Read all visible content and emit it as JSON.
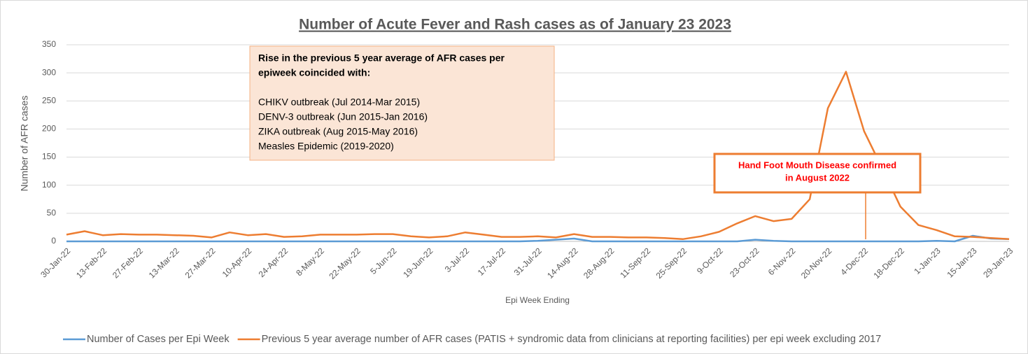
{
  "chart_data": {
    "type": "line",
    "title": "Number of Acute Fever and Rash cases as of January 23 2023",
    "x_label": "Epi Week Ending",
    "y_label": "Number of AFR cases",
    "categories": [
      "30-Jan-22",
      null,
      "13-Feb-22",
      null,
      "27-Feb-22",
      null,
      "13-Mar-22",
      null,
      "27-Mar-22",
      null,
      "10-Apr-22",
      null,
      "24-Apr-22",
      null,
      "8-May-22",
      null,
      "22-May-22",
      null,
      "5-Jun-22",
      null,
      "19-Jun-22",
      null,
      "3-Jul-22",
      null,
      "17-Jul-22",
      null,
      "31-Jul-22",
      null,
      "14-Aug-22",
      null,
      "28-Aug-22",
      null,
      "11-Sep-22",
      null,
      "25-Sep-22",
      null,
      "9-Oct-22",
      null,
      "23-Oct-22",
      null,
      "6-Nov-22",
      null,
      "20-Nov-22",
      null,
      "4-Dec-22",
      null,
      "18-Dec-22",
      null,
      "1-Jan-23",
      null,
      "15-Jan-23",
      null,
      "29-Jan-23"
    ],
    "series": [
      {
        "name": "Number of Cases per Epi Week",
        "color": "#5b9bd5",
        "values": [
          0,
          0,
          0,
          0,
          0,
          0,
          0,
          0,
          0,
          0,
          0,
          0,
          0,
          0,
          0,
          0,
          0,
          0,
          0,
          0,
          0,
          0,
          0,
          0,
          0,
          0,
          1,
          3,
          5,
          0,
          0,
          0,
          0,
          0,
          0,
          0,
          0,
          0,
          3,
          1,
          0,
          0,
          0,
          0,
          0,
          0,
          0,
          0,
          1,
          0,
          10,
          5,
          4
        ]
      },
      {
        "name": "Previous 5 year average number of AFR cases (PATIS + syndromic data from clinicians at reporting facilities) per epi week excluding 2017",
        "color": "#ed7d31",
        "values": [
          12,
          18,
          11,
          13,
          12,
          12,
          11,
          10,
          7,
          16,
          11,
          13,
          8,
          9,
          12,
          12,
          12,
          13,
          13,
          9,
          7,
          9,
          16,
          12,
          8,
          8,
          9,
          7,
          13,
          8,
          8,
          7,
          7,
          6,
          4,
          9,
          17,
          32,
          45,
          36,
          40,
          75,
          237,
          302,
          196,
          130,
          62,
          29,
          20,
          9,
          8,
          6,
          4
        ]
      }
    ],
    "ylim": [
      0,
      350
    ],
    "yticks": [
      0,
      50,
      100,
      150,
      200,
      250,
      300,
      350
    ],
    "grid": true,
    "legend": "bottom",
    "annotations": [
      {
        "heading": [
          "Rise in the previous 5 year average of AFR cases per",
          "epiweek coincided with:"
        ],
        "items": [
          "CHIKV outbreak (Jul 2014-Mar 2015)",
          "DENV-3 outbreak (Jun 2015-Jan 2016)",
          "ZIKA outbreak (Aug 2015-May 2016)",
          "Measles Epidemic (2019-2020)"
        ]
      },
      {
        "heading": [
          "Hand Foot Mouth Disease  confirmed",
          "in August 2022"
        ]
      }
    ]
  }
}
